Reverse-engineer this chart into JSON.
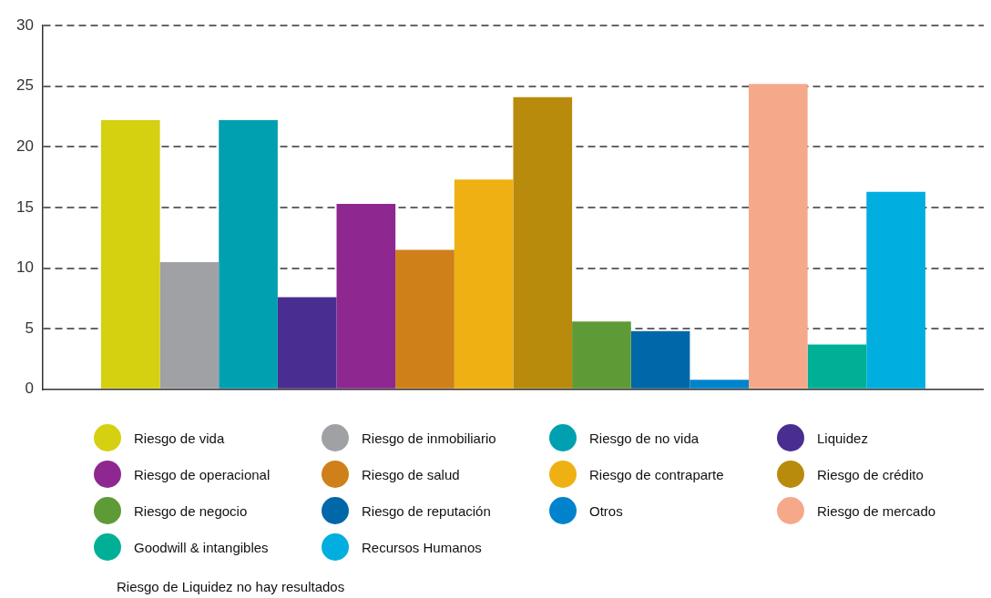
{
  "chart_data": {
    "type": "bar",
    "categories": [
      null
    ],
    "series": [
      {
        "name": "Riesgo de vida",
        "color": "#d5d010",
        "values": [
          22.2
        ]
      },
      {
        "name": "Riesgo de inmobiliario",
        "color": "#a0a1a4",
        "values": [
          10.5
        ]
      },
      {
        "name": "Riesgo de no vida",
        "color": "#00a0b0",
        "values": [
          22.2
        ]
      },
      {
        "name": "Liquidez",
        "color": "#4a2d90",
        "values": [
          7.6
        ]
      },
      {
        "name": "Riesgo de operacional",
        "color": "#8e278f",
        "values": [
          15.3
        ]
      },
      {
        "name": "Riesgo de salud",
        "color": "#cf8018",
        "values": [
          11.5
        ]
      },
      {
        "name": "Riesgo de contraparte",
        "color": "#eeb012",
        "values": [
          17.3
        ]
      },
      {
        "name": "Riesgo de crédito",
        "color": "#b88b0c",
        "values": [
          24.1
        ]
      },
      {
        "name": "Riesgo de negocio",
        "color": "#5e9a35",
        "values": [
          5.6
        ]
      },
      {
        "name": "Riesgo de reputación",
        "color": "#0068a8",
        "values": [
          4.8
        ]
      },
      {
        "name": "Otros",
        "color": "#0083cc",
        "values": [
          0.8
        ]
      },
      {
        "name": "Riesgo de mercado",
        "color": "#f6a98a",
        "values": [
          25.2
        ]
      },
      {
        "name": "Goodwill & intangibles",
        "color": "#00b096",
        "values": [
          3.7
        ]
      },
      {
        "name": "Recursos Humanos",
        "color": "#00aee0",
        "values": [
          16.3
        ]
      }
    ],
    "ylim": [
      0,
      30
    ],
    "yticks": [
      0,
      5,
      10,
      15,
      20,
      25,
      30
    ],
    "grid": "y",
    "legend": "bottom",
    "annotations": [
      "Riesgo de Liquidez no hay resultados"
    ]
  }
}
